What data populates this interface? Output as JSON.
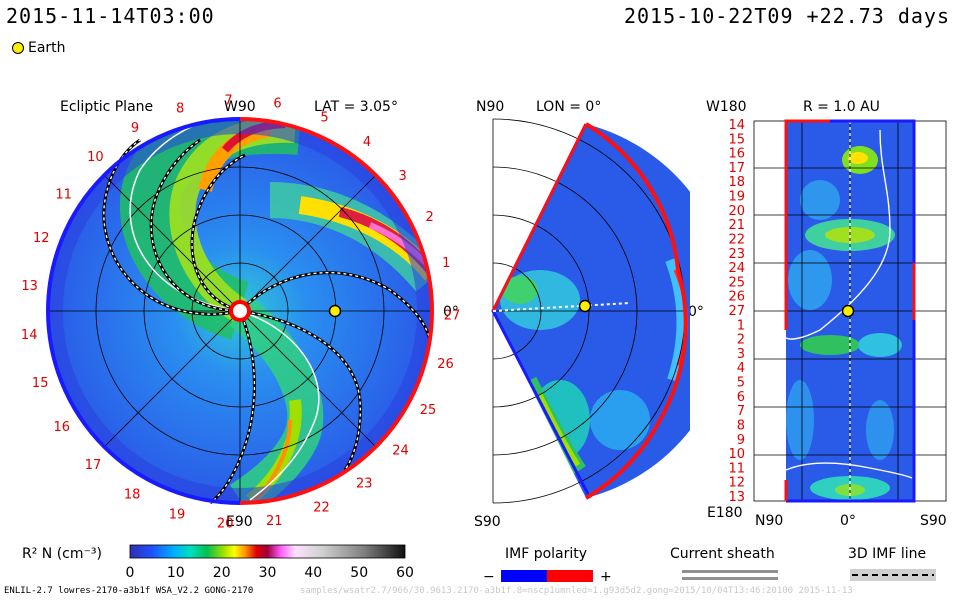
{
  "header": {
    "current_time": "2015-11-14T03:00",
    "run_time": "2015-10-22T09  +22.73 days"
  },
  "legend": {
    "earth_label": "Earth"
  },
  "panels": {
    "ecliptic": {
      "title": "Ecliptic Plane",
      "lat_label": "LAT = 3.05°",
      "top_label": "W90",
      "bottom_label": "E90",
      "right_label": "0°",
      "carrington_ticks": [
        "1",
        "2",
        "3",
        "4",
        "5",
        "6",
        "7",
        "8",
        "9",
        "10",
        "11",
        "12",
        "13",
        "14",
        "15",
        "16",
        "17",
        "18",
        "19",
        "20",
        "21",
        "22",
        "23",
        "24",
        "25",
        "26",
        "27"
      ]
    },
    "meridional": {
      "lon_label": "LON = 0°",
      "top_label": "N90",
      "bottom_label": "S90",
      "right_label": "0°"
    },
    "sphere": {
      "r_label": "R = 1.0 AU",
      "top_left_label": "W180",
      "bottom_left_label": "E180",
      "x_labels": [
        "N90",
        "0°",
        "S90"
      ],
      "y_labels": [
        "14",
        "15",
        "16",
        "17",
        "18",
        "19",
        "20",
        "21",
        "22",
        "23",
        "24",
        "25",
        "26",
        "27",
        "1",
        "2",
        "3",
        "4",
        "5",
        "6",
        "7",
        "8",
        "9",
        "10",
        "11",
        "12",
        "13"
      ]
    }
  },
  "colorbar": {
    "label": "R² N (cm⁻³)",
    "ticks": [
      "0",
      "10",
      "20",
      "30",
      "40",
      "50",
      "60"
    ],
    "range": [
      0,
      60
    ],
    "colors": [
      "#2020a0",
      "#3040ff",
      "#00a0ff",
      "#00e0e0",
      "#00c060",
      "#80e000",
      "#ffff00",
      "#ffa000",
      "#ff3000",
      "#c00040",
      "#ff80ff",
      "#ffffff",
      "#c0c0c0",
      "#808080",
      "#202020"
    ]
  },
  "imf_legend": {
    "polarity_label": "IMF polarity",
    "minus": "−",
    "plus": "+",
    "negative_color": "#0000ff",
    "positive_color": "#ff0000",
    "sheath_label": "Current sheath",
    "imf3d_label": "3D IMF line"
  },
  "footer": {
    "left": "ENLIL-2.7 lowres-2170-a3b1f WSA_V2.2 GONG-2170",
    "faint": "samples/wsatr2.7/966/30.9613.2170-a3b1f.8=nscp1umnled=1.g93d5d2.gong=2015/10/04T13:46:20100    2015-11-13"
  },
  "chart_data": {
    "type": "heatmap",
    "title": "",
    "quantity": "R² N (cm⁻³)",
    "value_range": [
      0,
      60
    ],
    "earth_position": {
      "lat_deg": 3.05,
      "lon_deg": 0,
      "r_au": 1.0
    },
    "panels": [
      "Ecliptic Plane",
      "Meridional (LON = 0°)",
      "R = 1.0 AU"
    ]
  }
}
